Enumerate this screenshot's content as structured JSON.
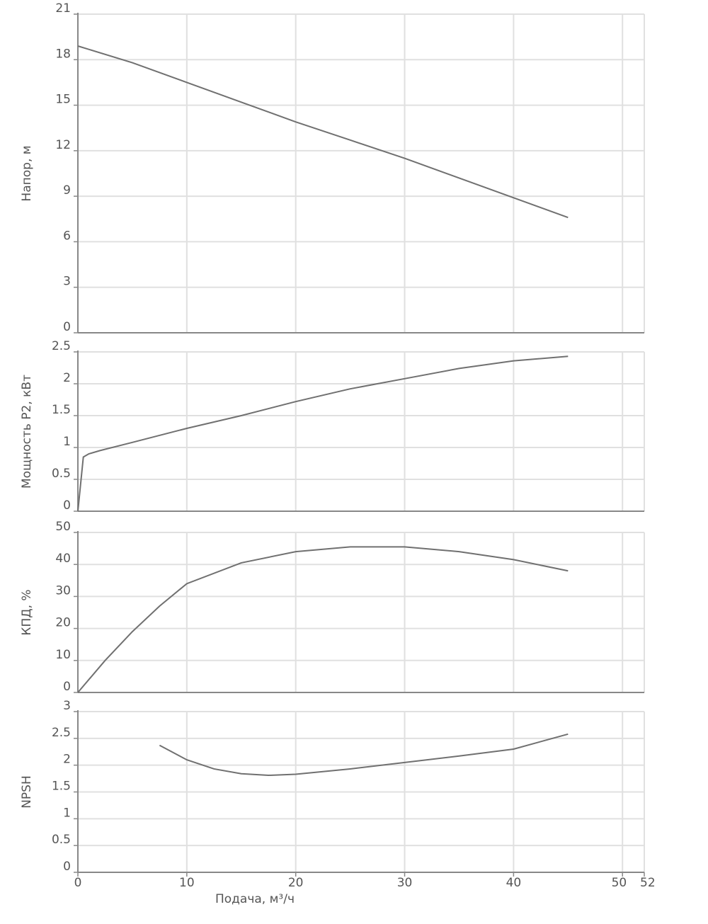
{
  "chart_data": [
    {
      "type": "line",
      "ylabel": "Напор, м",
      "color": "#707070",
      "x": [
        0,
        5,
        10,
        15,
        20,
        25,
        30,
        35,
        40,
        45
      ],
      "values": [
        18.9,
        17.8,
        16.5,
        15.2,
        13.9,
        12.7,
        11.5,
        10.2,
        8.9,
        7.6
      ],
      "xlim": [
        0,
        52
      ],
      "xticks": [
        0,
        10,
        20,
        30,
        40,
        50,
        52
      ],
      "ylim": [
        0,
        21
      ],
      "yticks": [
        0,
        3,
        6,
        9,
        12,
        15,
        18,
        21
      ],
      "grid": true
    },
    {
      "type": "line",
      "ylabel": "Мощность P2, кВт",
      "color": "#707070",
      "x": [
        0,
        0.5,
        1,
        2,
        5,
        10,
        15,
        20,
        25,
        30,
        35,
        40,
        45
      ],
      "values": [
        0,
        0.85,
        0.9,
        0.95,
        1.08,
        1.3,
        1.5,
        1.72,
        1.92,
        2.08,
        2.24,
        2.36,
        2.43
      ],
      "xlim": [
        0,
        52
      ],
      "xticks": [
        0,
        10,
        20,
        30,
        40,
        50,
        52
      ],
      "ylim": [
        0,
        2.5
      ],
      "yticks": [
        0,
        0.5,
        1,
        1.5,
        2,
        2.5
      ],
      "grid": true
    },
    {
      "type": "line",
      "ylabel": "КПД, %",
      "color": "#707070",
      "x": [
        0,
        2.5,
        5,
        7.5,
        10,
        15,
        20,
        25,
        30,
        35,
        40,
        45
      ],
      "values": [
        0,
        10,
        19,
        27,
        34,
        40.5,
        44,
        45.5,
        45.5,
        44,
        41.5,
        38
      ],
      "xlim": [
        0,
        52
      ],
      "xticks": [
        0,
        10,
        20,
        30,
        40,
        50,
        52
      ],
      "ylim": [
        0,
        50
      ],
      "yticks": [
        0,
        10,
        20,
        30,
        40,
        50
      ],
      "grid": true
    },
    {
      "type": "line",
      "ylabel": "NPSH",
      "xlabel": "Подача, м³/ч",
      "color": "#707070",
      "x": [
        7.5,
        10,
        12.5,
        15,
        17.5,
        20,
        25,
        30,
        35,
        40,
        45
      ],
      "values": [
        2.37,
        2.1,
        1.93,
        1.84,
        1.81,
        1.83,
        1.93,
        2.05,
        2.17,
        2.3,
        2.58
      ],
      "xlim": [
        0,
        52
      ],
      "xticks": [
        0,
        10,
        20,
        30,
        40,
        50,
        52
      ],
      "ylim": [
        0,
        3
      ],
      "yticks": [
        0,
        0.5,
        1,
        1.5,
        2,
        2.5,
        3
      ],
      "grid": true
    }
  ]
}
